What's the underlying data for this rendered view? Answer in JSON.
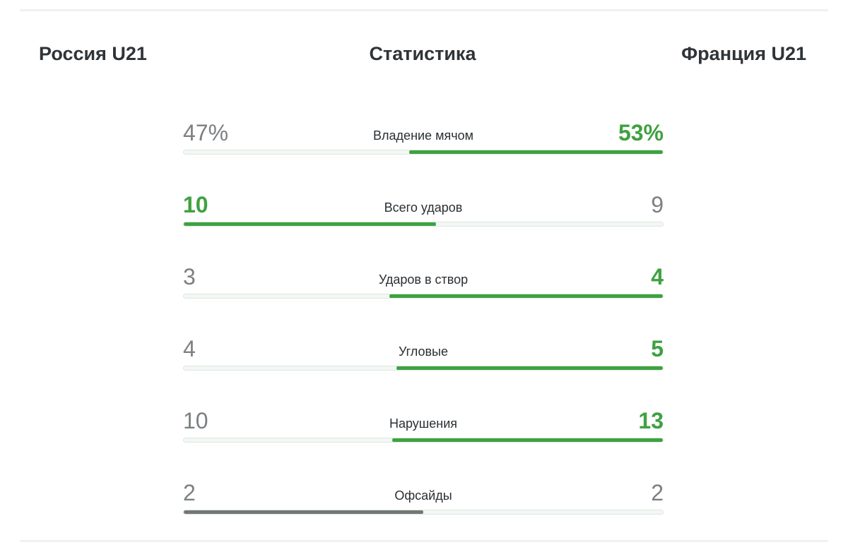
{
  "header": {
    "home_team": "Россия U21",
    "title": "Статистика",
    "away_team": "Франция U21"
  },
  "stats": [
    {
      "label": "Владение мячом",
      "home": "47%",
      "away": "53%",
      "home_value": 47,
      "away_value": 53,
      "leader": "away"
    },
    {
      "label": "Всего ударов",
      "home": "10",
      "away": "9",
      "home_value": 10,
      "away_value": 9,
      "leader": "home"
    },
    {
      "label": "Ударов в створ",
      "home": "3",
      "away": "4",
      "home_value": 3,
      "away_value": 4,
      "leader": "away"
    },
    {
      "label": "Угловые",
      "home": "4",
      "away": "5",
      "home_value": 4,
      "away_value": 5,
      "leader": "away"
    },
    {
      "label": "Нарушения",
      "home": "10",
      "away": "13",
      "home_value": 10,
      "away_value": 13,
      "leader": "away"
    },
    {
      "label": "Офсайды",
      "home": "2",
      "away": "2",
      "home_value": 2,
      "away_value": 2,
      "leader": "draw"
    }
  ],
  "colors": {
    "leader": "#3fa142",
    "draw": "#747678",
    "muted_value": "#7c8082"
  }
}
